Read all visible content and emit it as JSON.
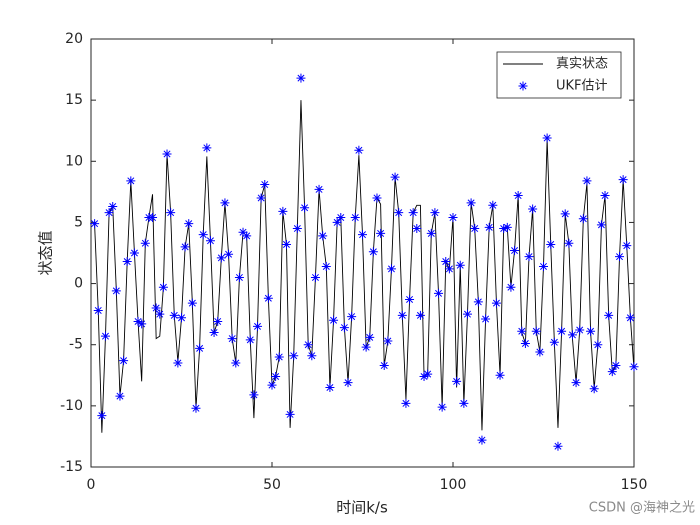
{
  "chart_data": {
    "type": "line",
    "x_label": "时间k/s",
    "y_label": "状态值",
    "xlim": [
      0,
      150
    ],
    "ylim": [
      -15,
      20
    ],
    "xticks": [
      0,
      50,
      100,
      150
    ],
    "yticks": [
      -15,
      -10,
      -5,
      0,
      5,
      10,
      15,
      20
    ],
    "grid": false,
    "legend": "northeast",
    "watermark": "CSDN @海神之光",
    "x": [
      1,
      2,
      3,
      4,
      5,
      6,
      7,
      8,
      9,
      10,
      11,
      12,
      13,
      14,
      15,
      16,
      17,
      18,
      19,
      20,
      21,
      22,
      23,
      24,
      25,
      26,
      27,
      28,
      29,
      30,
      31,
      32,
      33,
      34,
      35,
      36,
      37,
      38,
      39,
      40,
      41,
      42,
      43,
      44,
      45,
      46,
      47,
      48,
      49,
      50,
      51,
      52,
      53,
      54,
      55,
      56,
      57,
      58,
      59,
      60,
      61,
      62,
      63,
      64,
      65,
      66,
      67,
      68,
      69,
      70,
      71,
      72,
      73,
      74,
      75,
      76,
      77,
      78,
      79,
      80,
      81,
      82,
      83,
      84,
      85,
      86,
      87,
      88,
      89,
      90,
      91,
      92,
      93,
      94,
      95,
      96,
      97,
      98,
      99,
      100,
      101,
      102,
      103,
      104,
      105,
      106,
      107,
      108,
      109,
      110,
      111,
      112,
      113,
      114,
      115,
      116,
      117,
      118,
      119,
      120,
      121,
      122,
      123,
      124,
      125,
      126,
      127,
      128,
      129,
      130,
      131,
      132,
      133,
      134,
      135,
      136,
      137,
      138,
      139,
      140,
      141,
      142,
      143,
      144,
      145,
      146,
      147,
      148,
      149,
      150
    ],
    "series": [
      {
        "name": "真实状态",
        "color": "#000000",
        "marker": "none",
        "values": [
          4.8,
          -2.2,
          -12.2,
          -4.3,
          5.8,
          6.3,
          -0.6,
          -9.2,
          -6.3,
          1.8,
          8.4,
          2.5,
          -3.1,
          -8.0,
          3.3,
          5.4,
          7.3,
          -4.5,
          -4.3,
          -0.3,
          10.6,
          5.8,
          -2.6,
          -6.4,
          -2.8,
          3.0,
          4.9,
          -1.6,
          -10.2,
          -5.3,
          4.0,
          10.4,
          3.5,
          -4.0,
          -3.1,
          2.1,
          6.6,
          2.4,
          -4.5,
          -6.5,
          0.5,
          4.2,
          3.9,
          -4.6,
          -11.0,
          -3.5,
          7.0,
          8.1,
          -1.2,
          -8.3,
          -7.6,
          -6.0,
          5.9,
          3.2,
          -11.8,
          -5.9,
          4.5,
          15.0,
          6.2,
          -5.0,
          -5.9,
          0.5,
          7.7,
          3.9,
          1.4,
          -8.5,
          -3.0,
          5.0,
          5.4,
          -3.6,
          -8.1,
          -2.7,
          5.4,
          10.5,
          4.0,
          -5.2,
          -4.4,
          2.6,
          7.0,
          6.5,
          -6.7,
          -4.7,
          1.2,
          8.7,
          5.8,
          -2.6,
          -9.5,
          -1.3,
          5.8,
          6.4,
          6.4,
          -7.6,
          -7.4,
          4.1,
          5.8,
          -0.8,
          -10.1,
          1.8,
          1.2,
          5.4,
          -8.5,
          1.5,
          -9.8,
          -2.5,
          6.6,
          4.5,
          -1.5,
          -12.0,
          -2.9,
          4.6,
          6.4,
          -1.6,
          -7.5,
          4.5,
          4.6,
          -0.3,
          2.7,
          7.2,
          -4.0,
          -4.9,
          2.2,
          6.1,
          -3.9,
          -5.6,
          1.4,
          11.8,
          3.2,
          -4.8,
          -11.8,
          -3.9,
          5.7,
          3.3,
          -4.5,
          -8.1,
          -3.8,
          5.3,
          8.2,
          -3.9,
          -8.6,
          -5.0,
          4.8,
          7.2,
          -2.6,
          -7.2,
          -6.7,
          2.2,
          8.5,
          3.1,
          -2.8,
          -7.0
        ]
      },
      {
        "name": "UKF估计",
        "color": "#0000ff",
        "marker": "star",
        "values": [
          4.9,
          -2.2,
          -10.8,
          -4.3,
          5.8,
          6.3,
          -0.6,
          -9.2,
          -6.3,
          1.8,
          8.4,
          2.5,
          -3.1,
          -3.3,
          3.3,
          5.4,
          5.4,
          -2.0,
          -2.5,
          -0.3,
          10.6,
          5.8,
          -2.6,
          -6.5,
          -2.8,
          3.0,
          4.9,
          -1.6,
          -10.2,
          -5.3,
          4.0,
          11.1,
          3.5,
          -4.0,
          -3.1,
          2.1,
          6.6,
          2.4,
          -4.5,
          -6.5,
          0.5,
          4.2,
          3.9,
          -4.6,
          -9.1,
          -3.5,
          7.0,
          8.1,
          -1.2,
          -8.3,
          -7.6,
          -6.0,
          5.9,
          3.2,
          -10.7,
          -5.9,
          4.5,
          16.8,
          6.2,
          -5.0,
          -5.9,
          0.5,
          7.7,
          3.9,
          1.4,
          -8.5,
          -3.0,
          5.0,
          5.4,
          -3.6,
          -8.1,
          -2.7,
          5.4,
          10.9,
          4.0,
          -5.2,
          -4.4,
          2.6,
          7.0,
          4.1,
          -6.7,
          -4.7,
          1.2,
          8.7,
          5.8,
          -2.6,
          -9.8,
          -1.3,
          5.8,
          4.5,
          -2.6,
          -7.6,
          -7.4,
          4.1,
          5.8,
          -0.8,
          -10.1,
          1.8,
          1.2,
          5.4,
          -8.0,
          1.5,
          -9.8,
          -2.5,
          6.6,
          4.5,
          -1.5,
          -12.8,
          -2.9,
          4.6,
          6.4,
          -1.6,
          -7.5,
          4.5,
          4.6,
          -0.3,
          2.7,
          7.2,
          -3.9,
          -4.9,
          2.2,
          6.1,
          -3.9,
          -5.6,
          1.4,
          11.9,
          3.2,
          -4.8,
          -13.3,
          -3.9,
          5.7,
          3.3,
          -4.2,
          -8.1,
          -3.8,
          5.3,
          8.4,
          -3.9,
          -8.6,
          -5.0,
          4.8,
          7.2,
          -2.6,
          -7.2,
          -6.7,
          2.2,
          8.5,
          3.1,
          -2.8,
          -6.8
        ]
      }
    ]
  }
}
